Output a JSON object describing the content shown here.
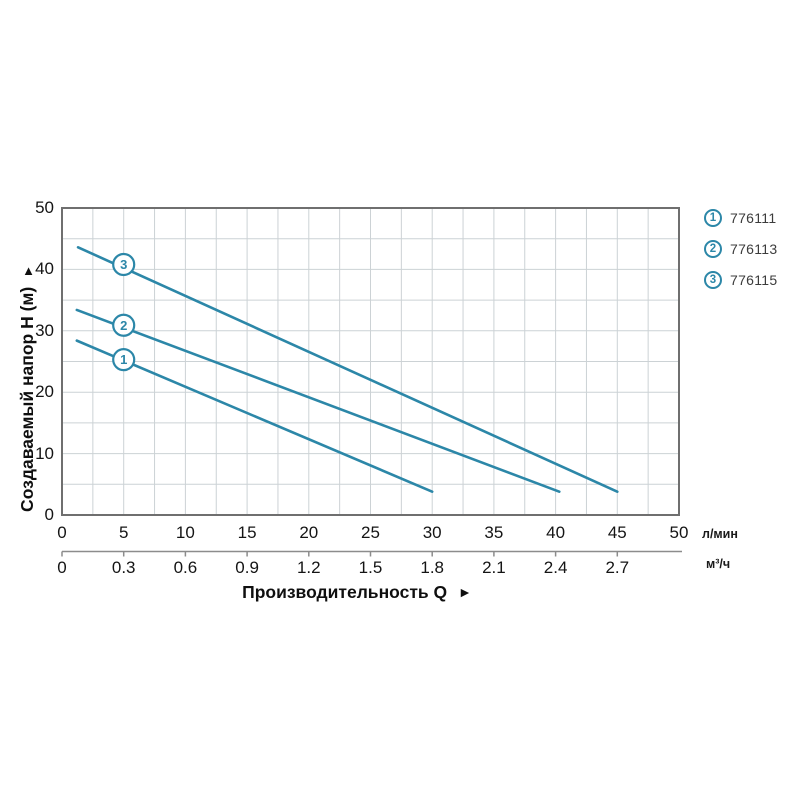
{
  "page": {
    "background": "#ffffff"
  },
  "chart_data": {
    "type": "line",
    "title": "",
    "xlabel": "Производительность Q",
    "xlabel_arrow": "►",
    "ylabel": "Создаваемый напор H (м)",
    "ylabel_arrow": "▲",
    "x_axis": {
      "unit": "л/мин",
      "tick_labels": [
        "0",
        "5",
        "10",
        "15",
        "20",
        "25",
        "30",
        "35",
        "40",
        "45",
        "50"
      ],
      "range": [
        0,
        50
      ],
      "grid_step": 2.5
    },
    "x_axis_secondary": {
      "unit": "м³/ч",
      "tick_labels": [
        "0",
        "0.3",
        "0.6",
        "0.9",
        "1.2",
        "1.5",
        "1.8",
        "2.1",
        "2.4",
        "2.7"
      ]
    },
    "y_axis": {
      "tick_labels": [
        "0",
        "10",
        "20",
        "30",
        "40",
        "50"
      ],
      "range": [
        0,
        50
      ],
      "grid_step": 5
    },
    "grid": "on",
    "legend_position": "top-right-outside",
    "series": [
      {
        "num": "1",
        "code": "776111",
        "points": [
          [
            1.2,
            28.4
          ],
          [
            30.0,
            3.8
          ]
        ],
        "marker": {
          "x": 5,
          "y": 25.3,
          "label": "1"
        }
      },
      {
        "num": "2",
        "code": "776113",
        "points": [
          [
            1.2,
            33.4
          ],
          [
            40.3,
            3.8
          ]
        ],
        "marker": {
          "x": 5,
          "y": 30.9,
          "label": "2"
        }
      },
      {
        "num": "3",
        "code": "776115",
        "points": [
          [
            1.3,
            43.6
          ],
          [
            45.0,
            3.8
          ]
        ],
        "marker": {
          "x": 5,
          "y": 40.8,
          "label": "3"
        }
      }
    ],
    "legend": [
      {
        "num": "1",
        "code": "776111"
      },
      {
        "num": "2",
        "code": "776113"
      },
      {
        "num": "3",
        "code": "776115"
      }
    ],
    "colors": {
      "accent": "#2c87a8",
      "grid": "#ccd2d5",
      "border": "#6f6f6f",
      "secondary_axis": "#8c8c8c",
      "tick_text": "#141414",
      "legend_text": "#3c3c3c"
    }
  }
}
